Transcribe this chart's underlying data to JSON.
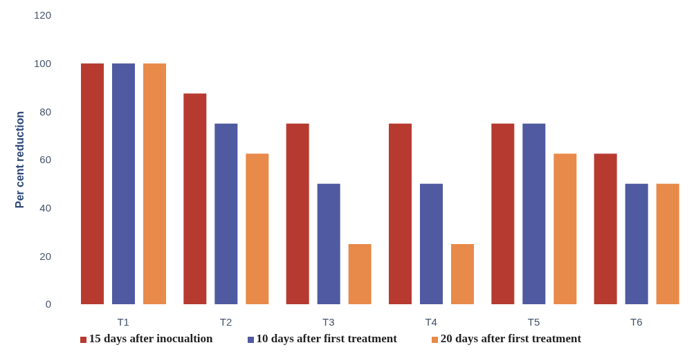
{
  "chart_data": {
    "type": "bar",
    "ylabel": "Per cent reduction",
    "categories": [
      "T1",
      "T2",
      "T3",
      "T4",
      "T5",
      "T6"
    ],
    "series": [
      {
        "name": "15 days after inocualtion",
        "color": "#b73a30",
        "values": [
          100,
          87.5,
          75,
          75,
          75,
          62.5
        ]
      },
      {
        "name": "10 days after first treatment",
        "color": "#4f5aa0",
        "values": [
          100,
          75,
          50,
          50,
          75,
          50
        ]
      },
      {
        "name": "20 days after first treatment",
        "color": "#e88a4a",
        "values": [
          100,
          62.5,
          25,
          25,
          62.5,
          50
        ]
      }
    ],
    "ylim": [
      0,
      120
    ],
    "yticks": [
      0,
      20,
      40,
      60,
      80,
      100,
      120
    ],
    "legend": "bottom"
  }
}
